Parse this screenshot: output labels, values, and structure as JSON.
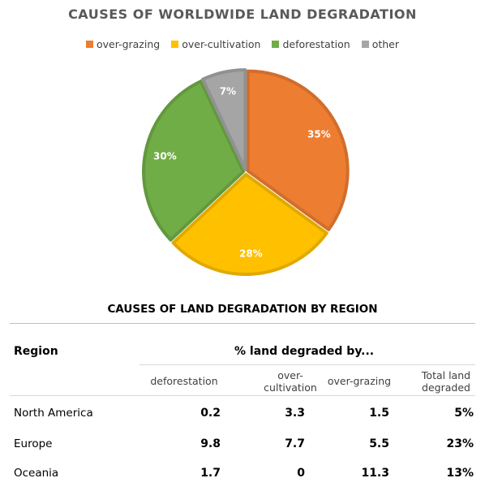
{
  "chart_data": [
    {
      "type": "pie",
      "title": "CAUSES OF WORLDWIDE LAND DEGRADATION",
      "legend_position": "top",
      "slices": [
        {
          "label": "over-grazing",
          "value": 35,
          "display": "35%",
          "color": "#ED7D31"
        },
        {
          "label": "over-cultivation",
          "value": 28,
          "display": "28%",
          "color": "#FFC000"
        },
        {
          "label": "deforestation",
          "value": 30,
          "display": "30%",
          "color": "#70AD47"
        },
        {
          "label": "other",
          "value": 7,
          "display": "7%",
          "color": "#A5A5A5"
        }
      ]
    },
    {
      "type": "table",
      "title": "CAUSES OF LAND DEGRADATION BY REGION",
      "header_region": "Region",
      "header_group": "% land degraded by...",
      "columns": [
        "deforestation",
        "over-cultivation",
        "over-grazing",
        "Total land degraded"
      ],
      "rows": [
        {
          "region": "North America",
          "values": [
            "0.2",
            "3.3",
            "1.5",
            "5%"
          ]
        },
        {
          "region": "Europe",
          "values": [
            "9.8",
            "7.7",
            "5.5",
            "23%"
          ]
        },
        {
          "region": "Oceania",
          "values": [
            "1.7",
            "0",
            "11.3",
            "13%"
          ]
        }
      ]
    }
  ]
}
